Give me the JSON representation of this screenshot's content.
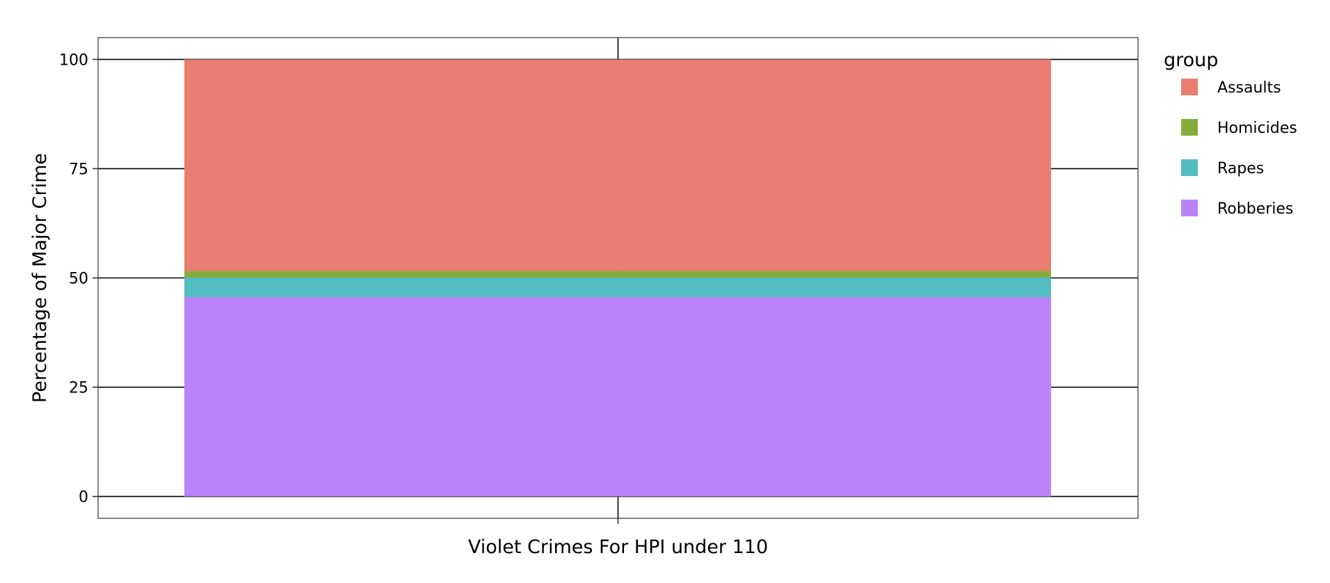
{
  "chart_data": {
    "type": "bar",
    "stacked": true,
    "title": "",
    "xlabel": "Violet Crimes For HPI under 110",
    "ylabel": "Percentage of Major Crime",
    "ylim": [
      -5,
      105
    ],
    "y_ticks": [
      0,
      25,
      50,
      75,
      100
    ],
    "y_tick_labels": [
      "0",
      "25",
      "50",
      "75",
      "100"
    ],
    "grid": true,
    "legend": {
      "title": "group",
      "placement": "right"
    },
    "categories": [
      ""
    ],
    "series": [
      {
        "name": "Robberies",
        "values": [
          45.6
        ],
        "color": "#B983F9"
      },
      {
        "name": "Rapes",
        "values": [
          4.5
        ],
        "color": "#53BBC2"
      },
      {
        "name": "Homicides",
        "values": [
          1.5
        ],
        "color": "#86AD3B"
      },
      {
        "name": "Assaults",
        "values": [
          48.4
        ],
        "color": "#E97D71"
      }
    ],
    "legend_order": [
      "Assaults",
      "Homicides",
      "Rapes",
      "Robberies"
    ]
  }
}
